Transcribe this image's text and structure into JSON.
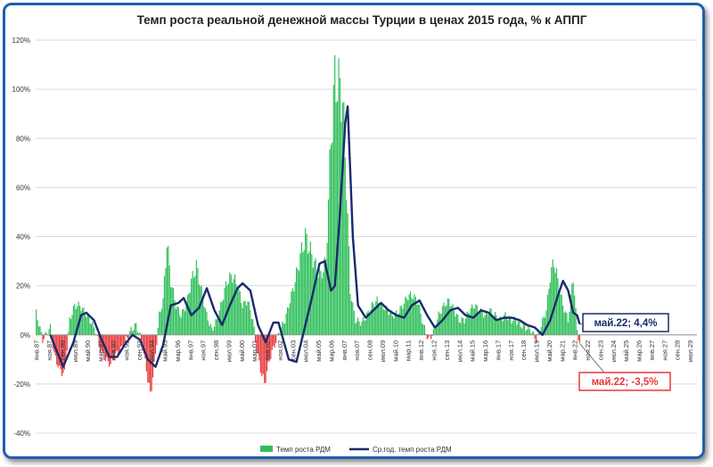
{
  "chart_data": {
    "type": "bar",
    "title": "Темп роста реальной денежной массы Турции в ценах 2015 года, % к АППГ",
    "xlabel": "",
    "ylabel": "",
    "ylim": [
      -40,
      120
    ],
    "y_ticks": [
      "-40%",
      "-20%",
      "0%",
      "20%",
      "40%",
      "60%",
      "80%",
      "100%",
      "120%"
    ],
    "y_tick_values": [
      -40,
      -20,
      0,
      20,
      40,
      60,
      80,
      100,
      120
    ],
    "x_range": [
      "1987-01",
      "2029-12"
    ],
    "x_tick_labels": [
      "янв.87",
      "ноя.87",
      "сен.88",
      "июл.89",
      "май.90",
      "мар.91",
      "янв.92",
      "ноя.92",
      "сен.93",
      "июл.94",
      "май.95",
      "мар.96",
      "янв.97",
      "ноя.97",
      "сен.98",
      "июл.99",
      "май.00",
      "мар.01",
      "янв.02",
      "ноя.02",
      "сен.03",
      "июл.04",
      "май.05",
      "мар.06",
      "янв.07",
      "ноя.07",
      "сен.08",
      "июл.09",
      "май.10",
      "мар.11",
      "янв.12",
      "ноя.12",
      "сен.13",
      "июл.14",
      "май.15",
      "мар.16",
      "янв.17",
      "ноя.17",
      "сен.18",
      "июл.19",
      "май.20",
      "мар.21",
      "янв.22",
      "ноя.22",
      "сен.23",
      "июл.24",
      "май.25",
      "мар.26",
      "янв.27",
      "ноя.27",
      "сен.28",
      "июл.29"
    ],
    "grid": true,
    "legend_position": "bottom",
    "colors": {
      "positive_bar": "#2fbf5a",
      "negative_bar": "#e8383b",
      "line": "#1a2a6c",
      "grid": "#d9d9d9",
      "frame": "#1f5fb0"
    },
    "series": [
      {
        "name": "Темп роста РДМ",
        "type": "bar",
        "points": [
          [
            "1987-01",
            9
          ],
          [
            "1987-06",
            -2
          ],
          [
            "1987-12",
            3
          ],
          [
            "1988-03",
            -8
          ],
          [
            "1988-07",
            -14
          ],
          [
            "1988-11",
            -16
          ],
          [
            "1989-03",
            6
          ],
          [
            "1989-07",
            12
          ],
          [
            "1989-11",
            12
          ],
          [
            "1990-03",
            9
          ],
          [
            "1990-07",
            6
          ],
          [
            "1990-11",
            2
          ],
          [
            "1991-03",
            -6
          ],
          [
            "1991-07",
            -10
          ],
          [
            "1991-11",
            -12
          ],
          [
            "1992-03",
            -8
          ],
          [
            "1992-07",
            -6
          ],
          [
            "1992-11",
            -2
          ],
          [
            "1993-03",
            2
          ],
          [
            "1993-07",
            4
          ],
          [
            "1993-11",
            -2
          ],
          [
            "1994-03",
            -14
          ],
          [
            "1994-06",
            -25
          ],
          [
            "1994-10",
            -8
          ],
          [
            "1995-01",
            8
          ],
          [
            "1995-04",
            14
          ],
          [
            "1995-07",
            38
          ],
          [
            "1995-10",
            22
          ],
          [
            "1996-02",
            12
          ],
          [
            "1996-06",
            8
          ],
          [
            "1996-10",
            12
          ],
          [
            "1997-02",
            22
          ],
          [
            "1997-06",
            28
          ],
          [
            "1997-10",
            18
          ],
          [
            "1998-02",
            8
          ],
          [
            "1998-06",
            2
          ],
          [
            "1998-10",
            6
          ],
          [
            "1999-02",
            14
          ],
          [
            "1999-06",
            22
          ],
          [
            "1999-10",
            24
          ],
          [
            "2000-02",
            20
          ],
          [
            "2000-06",
            12
          ],
          [
            "2000-10",
            14
          ],
          [
            "2001-02",
            6
          ],
          [
            "2001-05",
            -6
          ],
          [
            "2001-08",
            -14
          ],
          [
            "2001-11",
            -20
          ],
          [
            "2002-03",
            -10
          ],
          [
            "2002-07",
            -4
          ],
          [
            "2002-11",
            2
          ],
          [
            "2003-03",
            6
          ],
          [
            "2003-07",
            14
          ],
          [
            "2003-11",
            22
          ],
          [
            "2004-03",
            32
          ],
          [
            "2004-07",
            40
          ],
          [
            "2004-11",
            34
          ],
          [
            "2005-03",
            28
          ],
          [
            "2005-07",
            24
          ],
          [
            "2005-11",
            30
          ],
          [
            "2006-03",
            80
          ],
          [
            "2006-06",
            104
          ],
          [
            "2006-09",
            102
          ],
          [
            "2006-12",
            96
          ],
          [
            "2007-03",
            62
          ],
          [
            "2007-06",
            18
          ],
          [
            "2007-10",
            6
          ],
          [
            "2008-03",
            5
          ],
          [
            "2008-07",
            8
          ],
          [
            "2008-11",
            12
          ],
          [
            "2009-03",
            14
          ],
          [
            "2009-07",
            12
          ],
          [
            "2009-11",
            10
          ],
          [
            "2010-03",
            8
          ],
          [
            "2010-07",
            9
          ],
          [
            "2010-11",
            12
          ],
          [
            "2011-03",
            16
          ],
          [
            "2011-07",
            16
          ],
          [
            "2011-11",
            13
          ],
          [
            "2012-03",
            4
          ],
          [
            "2012-07",
            -2
          ],
          [
            "2012-11",
            1
          ],
          [
            "2013-03",
            8
          ],
          [
            "2013-07",
            12
          ],
          [
            "2013-11",
            14
          ],
          [
            "2014-03",
            10
          ],
          [
            "2014-07",
            6
          ],
          [
            "2014-11",
            6
          ],
          [
            "2015-03",
            10
          ],
          [
            "2015-07",
            12
          ],
          [
            "2015-11",
            10
          ],
          [
            "2016-03",
            8
          ],
          [
            "2016-07",
            10
          ],
          [
            "2016-11",
            8
          ],
          [
            "2017-03",
            6
          ],
          [
            "2017-07",
            8
          ],
          [
            "2017-11",
            6
          ],
          [
            "2018-03",
            6
          ],
          [
            "2018-07",
            4
          ],
          [
            "2018-11",
            3
          ],
          [
            "2019-03",
            2
          ],
          [
            "2019-07",
            -2
          ],
          [
            "2019-11",
            4
          ],
          [
            "2020-03",
            10
          ],
          [
            "2020-06",
            24
          ],
          [
            "2020-09",
            30
          ],
          [
            "2020-12",
            22
          ],
          [
            "2021-04",
            12
          ],
          [
            "2021-08",
            6
          ],
          [
            "2021-12",
            24
          ],
          [
            "2022-03",
            2
          ],
          [
            "2022-05",
            -3.5
          ]
        ]
      },
      {
        "name": "Ср.год. темп роста РДМ",
        "type": "line",
        "points": [
          [
            "1987-12",
            0
          ],
          [
            "1988-06",
            -8
          ],
          [
            "1988-10",
            -13
          ],
          [
            "1989-06",
            -3
          ],
          [
            "1989-12",
            8
          ],
          [
            "1990-04",
            9
          ],
          [
            "1990-10",
            6
          ],
          [
            "1991-04",
            -2
          ],
          [
            "1991-10",
            -9
          ],
          [
            "1992-04",
            -9
          ],
          [
            "1992-10",
            -4
          ],
          [
            "1993-04",
            0
          ],
          [
            "1993-10",
            -2
          ],
          [
            "1994-04",
            -10
          ],
          [
            "1994-10",
            -13
          ],
          [
            "1995-04",
            -4
          ],
          [
            "1995-10",
            12
          ],
          [
            "1996-04",
            13
          ],
          [
            "1996-08",
            15
          ],
          [
            "1997-02",
            8
          ],
          [
            "1997-08",
            11
          ],
          [
            "1998-02",
            19
          ],
          [
            "1998-08",
            10
          ],
          [
            "1999-02",
            4
          ],
          [
            "1999-08",
            12
          ],
          [
            "2000-02",
            19
          ],
          [
            "2000-06",
            21
          ],
          [
            "2000-12",
            18
          ],
          [
            "2001-06",
            4
          ],
          [
            "2001-12",
            -3
          ],
          [
            "2002-06",
            5
          ],
          [
            "2002-10",
            5
          ],
          [
            "2003-06",
            -10
          ],
          [
            "2003-12",
            -11
          ],
          [
            "2004-06",
            2
          ],
          [
            "2004-12",
            15
          ],
          [
            "2005-06",
            29
          ],
          [
            "2005-10",
            30
          ],
          [
            "2006-03",
            18
          ],
          [
            "2006-06",
            20
          ],
          [
            "2006-10",
            50
          ],
          [
            "2007-02",
            86
          ],
          [
            "2007-04",
            93
          ],
          [
            "2007-08",
            40
          ],
          [
            "2007-12",
            12
          ],
          [
            "2008-06",
            7
          ],
          [
            "2008-12",
            10
          ],
          [
            "2009-06",
            13
          ],
          [
            "2009-12",
            10
          ],
          [
            "2010-06",
            8
          ],
          [
            "2010-12",
            7
          ],
          [
            "2011-06",
            12
          ],
          [
            "2011-12",
            14
          ],
          [
            "2012-06",
            8
          ],
          [
            "2012-12",
            3
          ],
          [
            "2013-06",
            6
          ],
          [
            "2013-12",
            10
          ],
          [
            "2014-06",
            11
          ],
          [
            "2014-12",
            8
          ],
          [
            "2015-06",
            7
          ],
          [
            "2015-12",
            10
          ],
          [
            "2016-06",
            9
          ],
          [
            "2016-12",
            6
          ],
          [
            "2017-06",
            7
          ],
          [
            "2017-12",
            7
          ],
          [
            "2018-06",
            6
          ],
          [
            "2018-12",
            4
          ],
          [
            "2019-06",
            3
          ],
          [
            "2019-12",
            0
          ],
          [
            "2020-06",
            6
          ],
          [
            "2020-12",
            16
          ],
          [
            "2021-04",
            22
          ],
          [
            "2021-08",
            18
          ],
          [
            "2021-12",
            9
          ],
          [
            "2022-03",
            8
          ],
          [
            "2022-05",
            4.4
          ]
        ]
      }
    ],
    "annotations": [
      {
        "text": "май.22; 4,4%",
        "series": "Ср.год. темп роста РДМ",
        "x": "2022-05",
        "y": 4.4,
        "color": "#1a2a6c"
      },
      {
        "text": "май.22; -3,5%",
        "series": "Темп роста РДМ",
        "x": "2022-05",
        "y": -3.5,
        "color": "#e8383b"
      }
    ]
  }
}
